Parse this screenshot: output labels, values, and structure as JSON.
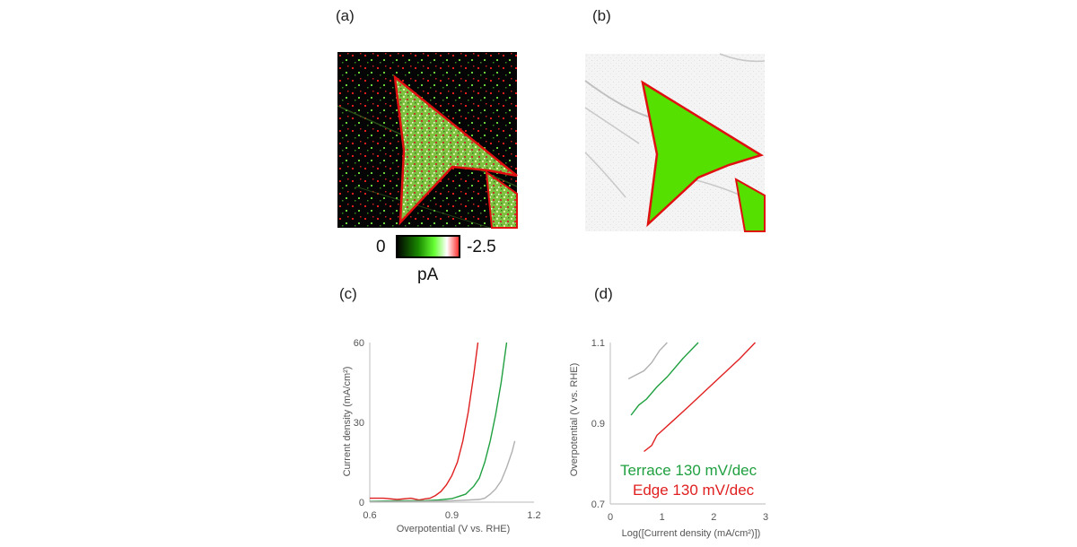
{
  "panels": {
    "a": "(a)",
    "b": "(b)",
    "c": "(c)",
    "d": "(d)"
  },
  "colorbar": {
    "min_label": "0",
    "max_label": "-2.5",
    "unit": "pA",
    "colors": [
      "#000000",
      "#1a8a00",
      "#66ff33",
      "#ffffff",
      "#ff2020"
    ]
  },
  "images": {
    "a": "current map of triangular flake (green/red noise on black) with red outline",
    "b": "segmented flake mask: green filled triangles with red edge on light gray"
  },
  "chart_data": [
    {
      "type": "line",
      "id": "c",
      "xlabel": "Overpotential (V vs. RHE)",
      "ylabel": "Current density (mA/cm²)",
      "xlim": [
        0.6,
        1.2
      ],
      "ylim": [
        0,
        60
      ],
      "xticks": [
        "0.6",
        "0.9",
        "1.2"
      ],
      "yticks": [
        "0",
        "30",
        "60"
      ],
      "series": [
        {
          "color": "#e02020",
          "points": [
            [
              0.6,
              1.5
            ],
            [
              0.65,
              1.5
            ],
            [
              0.7,
              1.0
            ],
            [
              0.75,
              1.5
            ],
            [
              0.78,
              0.8
            ],
            [
              0.8,
              1.2
            ],
            [
              0.82,
              1.5
            ],
            [
              0.84,
              2.5
            ],
            [
              0.86,
              4
            ],
            [
              0.88,
              6.5
            ],
            [
              0.9,
              10
            ],
            [
              0.92,
              15
            ],
            [
              0.94,
              23
            ],
            [
              0.96,
              34
            ],
            [
              0.98,
              48
            ],
            [
              0.995,
              60
            ]
          ]
        },
        {
          "color": "#20a040",
          "points": [
            [
              0.6,
              0.3
            ],
            [
              0.7,
              0.5
            ],
            [
              0.8,
              0.5
            ],
            [
              0.85,
              0.8
            ],
            [
              0.9,
              1.3
            ],
            [
              0.95,
              3
            ],
            [
              0.98,
              6
            ],
            [
              1.0,
              9
            ],
            [
              1.02,
              15
            ],
            [
              1.04,
              23
            ],
            [
              1.06,
              33
            ],
            [
              1.08,
              45
            ],
            [
              1.1,
              60
            ]
          ]
        },
        {
          "color": "#b0b0b0",
          "points": [
            [
              0.6,
              0.2
            ],
            [
              0.8,
              0.3
            ],
            [
              0.9,
              0.5
            ],
            [
              1.0,
              1.0
            ],
            [
              1.02,
              1.5
            ],
            [
              1.04,
              3
            ],
            [
              1.06,
              5
            ],
            [
              1.08,
              8
            ],
            [
              1.1,
              13
            ],
            [
              1.12,
              19
            ],
            [
              1.13,
              23
            ]
          ]
        }
      ]
    },
    {
      "type": "line",
      "id": "d",
      "xlabel": "Log([Current density (mA/cm²)])",
      "ylabel": "Overpotential (V vs. RHE)",
      "xlim": [
        0,
        3
      ],
      "ylim": [
        0.7,
        1.1
      ],
      "xticks": [
        "0",
        "1",
        "2",
        "3"
      ],
      "yticks": [
        "0.7",
        "0.9",
        "1.1"
      ],
      "annotations": [
        {
          "text": "Terrace 130 mV/dec",
          "color": "#20a040"
        },
        {
          "text": "Edge 130 mV/dec",
          "color": "#e02020"
        }
      ],
      "series": [
        {
          "color": "#b0b0b0",
          "points": [
            [
              0.35,
              1.01
            ],
            [
              0.5,
              1.02
            ],
            [
              0.65,
              1.03
            ],
            [
              0.8,
              1.05
            ],
            [
              0.95,
              1.08
            ],
            [
              1.1,
              1.1
            ]
          ]
        },
        {
          "color": "#20a040",
          "points": [
            [
              0.4,
              0.92
            ],
            [
              0.55,
              0.945
            ],
            [
              0.7,
              0.96
            ],
            [
              0.9,
              0.99
            ],
            [
              1.1,
              1.015
            ],
            [
              1.4,
              1.06
            ],
            [
              1.7,
              1.1
            ]
          ]
        },
        {
          "color": "#e02020",
          "points": [
            [
              0.65,
              0.83
            ],
            [
              0.8,
              0.845
            ],
            [
              0.9,
              0.87
            ],
            [
              1.2,
              0.905
            ],
            [
              1.5,
              0.94
            ],
            [
              2.0,
              1.0
            ],
            [
              2.5,
              1.06
            ],
            [
              2.8,
              1.1
            ]
          ]
        }
      ]
    }
  ]
}
